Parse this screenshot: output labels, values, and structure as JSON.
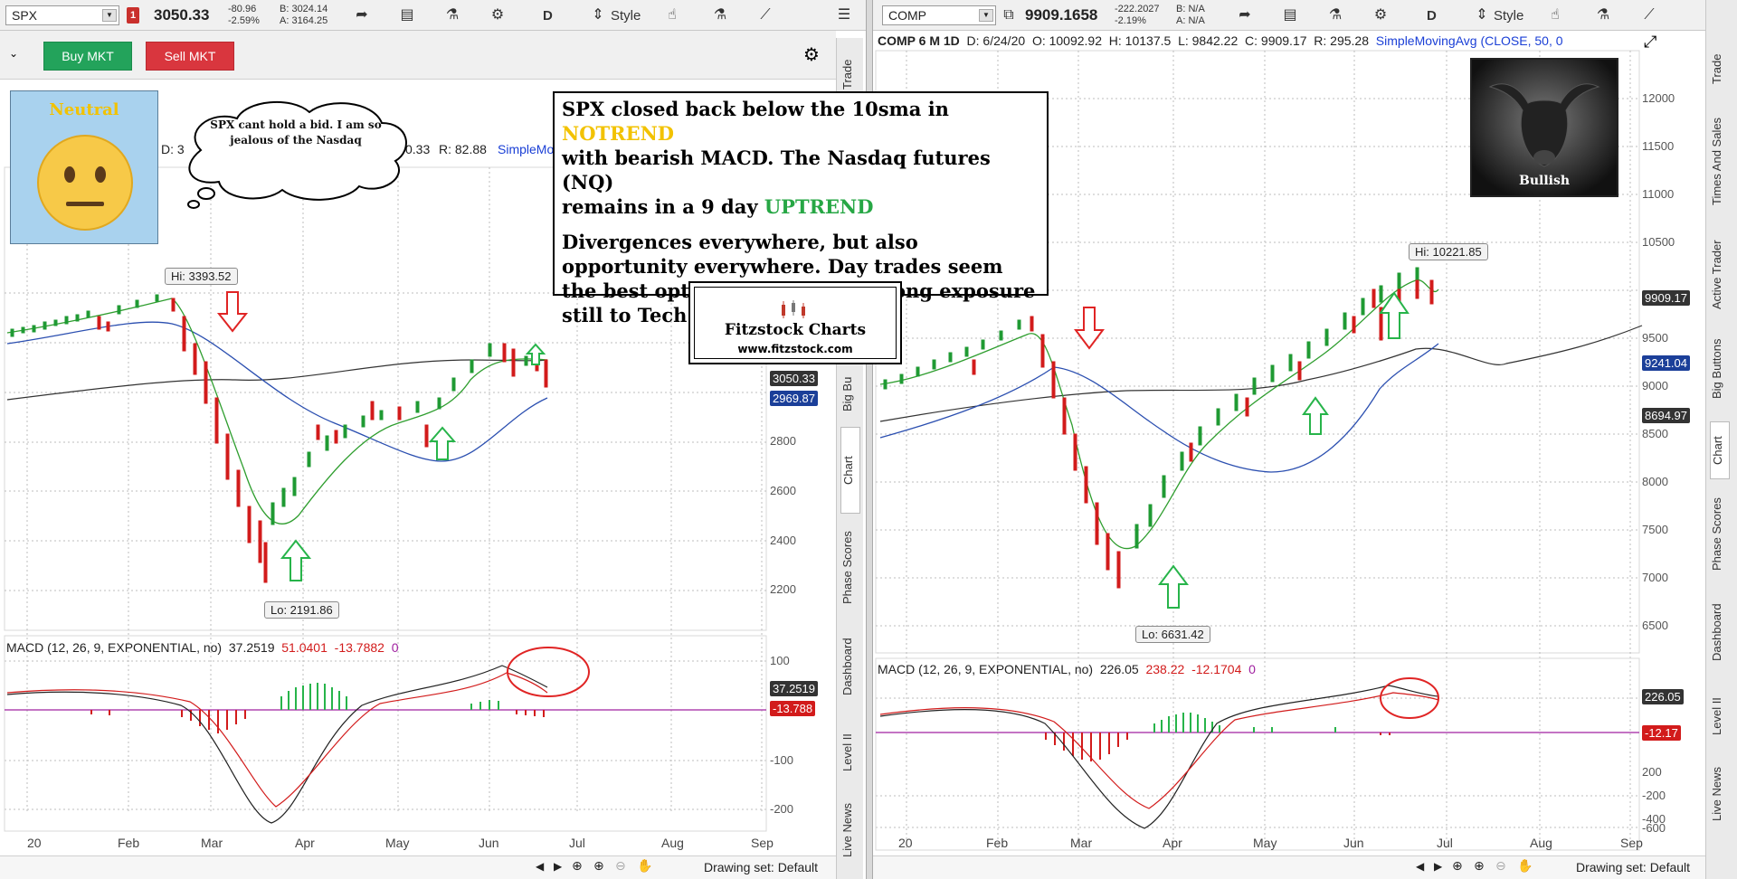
{
  "left": {
    "toolbar": {
      "symbol": "SPX",
      "alert_badge": "1",
      "last": "3050.33",
      "change": "-80.96",
      "change_pct": "-2.59%",
      "bid": "B: 3024.14",
      "ask": "A: 3164.25",
      "period_btn": "D",
      "style_label": "Style"
    },
    "tradebar": {
      "buy_label": "Buy MKT",
      "sell_label": "Sell MKT"
    },
    "info_strip": {
      "prefix": "D: 3",
      "close_part": "0.33",
      "range": "R: 82.88",
      "study": "SimpleMov"
    },
    "price_axis": [
      "2200",
      "2400",
      "2600",
      "2800"
    ],
    "tags": {
      "last": "3050.33",
      "sma": "2969.87"
    },
    "hi_label": "Hi: 3393.52",
    "lo_label": "Lo: 2191.86",
    "macd_header": {
      "label": "MACD (12, 26, 9, EXPONENTIAL, no)",
      "v1": "37.2519",
      "v2": "51.0401",
      "v3": "-13.7882",
      "v4": "0"
    },
    "macd_axis": [
      "100",
      "-100",
      "-200"
    ],
    "macd_tags": {
      "v": "37.2519",
      "diff": "-13.788"
    },
    "months": [
      "20",
      "Feb",
      "Mar",
      "Apr",
      "May",
      "Jun",
      "Jul",
      "Aug",
      "Sep"
    ],
    "drawing_set": "Drawing set: Default",
    "vtabs": [
      "Trade",
      "Big Bu",
      "Chart",
      "Phase Scores",
      "Dashboard",
      "Level II",
      "Live News"
    ]
  },
  "right": {
    "toolbar": {
      "symbol": "COMP",
      "last": "9909.1658",
      "change": "-222.2027",
      "change_pct": "-2.19%",
      "bid": "B: N/A",
      "ask": "A: N/A",
      "period_btn": "D",
      "style_label": "Style"
    },
    "info_strip": {
      "title": "COMP 6 M 1D",
      "date": "D: 6/24/20",
      "open": "O: 10092.92",
      "high": "H: 10137.5",
      "low": "L: 9842.22",
      "close": "C: 9909.17",
      "range": "R: 295.28",
      "study": "SimpleMovingAvg (CLOSE, 50, 0"
    },
    "price_axis": [
      "12000",
      "11500",
      "11000",
      "10500",
      "9500",
      "9000",
      "8500",
      "8000",
      "7500",
      "7000",
      "6500"
    ],
    "tags": {
      "last": "9909.17",
      "sma50": "9241.04",
      "sma200": "8694.97"
    },
    "hi_label": "Hi: 10221.85",
    "lo_label": "Lo: 6631.42",
    "macd_header": {
      "label": "MACD (12, 26, 9, EXPONENTIAL, no)",
      "v1": "226.05",
      "v2": "238.22",
      "v3": "-12.1704",
      "v4": "0"
    },
    "macd_axis": [
      "200",
      "-200",
      "-400",
      "-600"
    ],
    "macd_tags": {
      "v": "226.05",
      "diff": "-12.17"
    },
    "months": [
      "20",
      "Feb",
      "Mar",
      "Apr",
      "May",
      "Jun",
      "Jul",
      "Aug",
      "Sep"
    ],
    "vtabs": [
      "Trade",
      "Times And Sales",
      "Active Trader",
      "Big Buttons",
      "Chart",
      "Phase Scores",
      "Dashboard",
      "Level II",
      "Live News"
    ],
    "drawing_set": "Drawing set: Default"
  },
  "overlay": {
    "neutral_label": "Neutral",
    "cloud_text": "SPX cant hold a bid.  I am so jealous of the Nasdaq",
    "text_line1_a": "SPX closed back below the 10sma in ",
    "text_line1_b": "NOTREND",
    "text_line2": "with bearish MACD.  The Nasdaq futures (NQ)",
    "text_line3_a": "remains in a 9 day ",
    "text_line3_b": "UPTREND",
    "text_para2": "Divergences everywhere, but also opportunity everywhere.   Day trades seem the best option , besides light long exposure still to Tech (with stops).",
    "logo_title": "Fitzstock Charts",
    "logo_url": "www.fitzstock.com",
    "bullish_label": "Bullish"
  },
  "colors": {
    "buy": "#23a35b",
    "sell": "#d9363e",
    "sma_green": "#2f9e2f",
    "sma_blue": "#2b4fb0",
    "sma_black": "#333333",
    "candle_up": "#1f9a33",
    "candle_down": "#d21b1b",
    "arrow_red": "#e02424",
    "arrow_green": "#27b44a",
    "zero_line": "#a020a0"
  }
}
